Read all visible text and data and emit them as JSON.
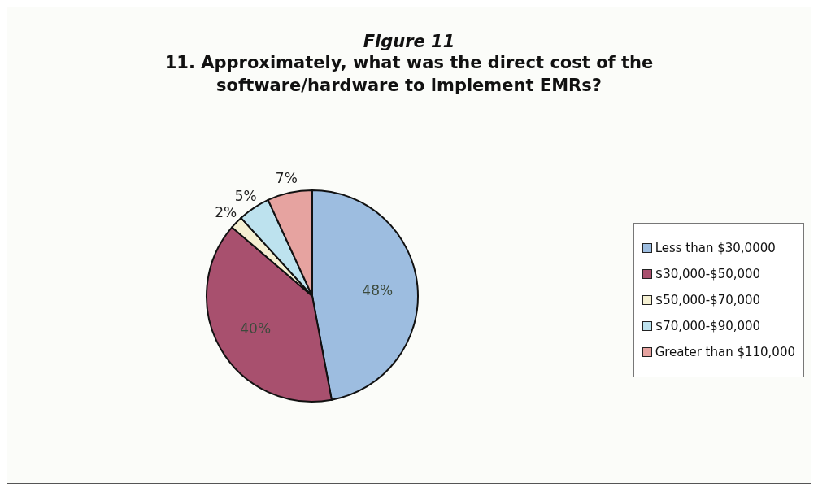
{
  "chart_data": {
    "type": "pie",
    "title": "Figure 11",
    "subtitle": "11. Approximately, what was the direct cost of the software/hardware to implement EMRs?",
    "categories": [
      "Less than $30,0000",
      "$30,000-$50,000",
      "$50,000-$70,000",
      "$70,000-$90,000",
      "Greater than $110,000"
    ],
    "values": [
      48,
      40,
      2,
      5,
      7
    ],
    "value_labels": [
      "48%",
      "40%",
      "2%",
      "5%",
      "7%"
    ],
    "colors": [
      "#9dbde0",
      "#a8506e",
      "#f5f0d2",
      "#bde2ee",
      "#e6a3a0"
    ],
    "legend": "right"
  }
}
